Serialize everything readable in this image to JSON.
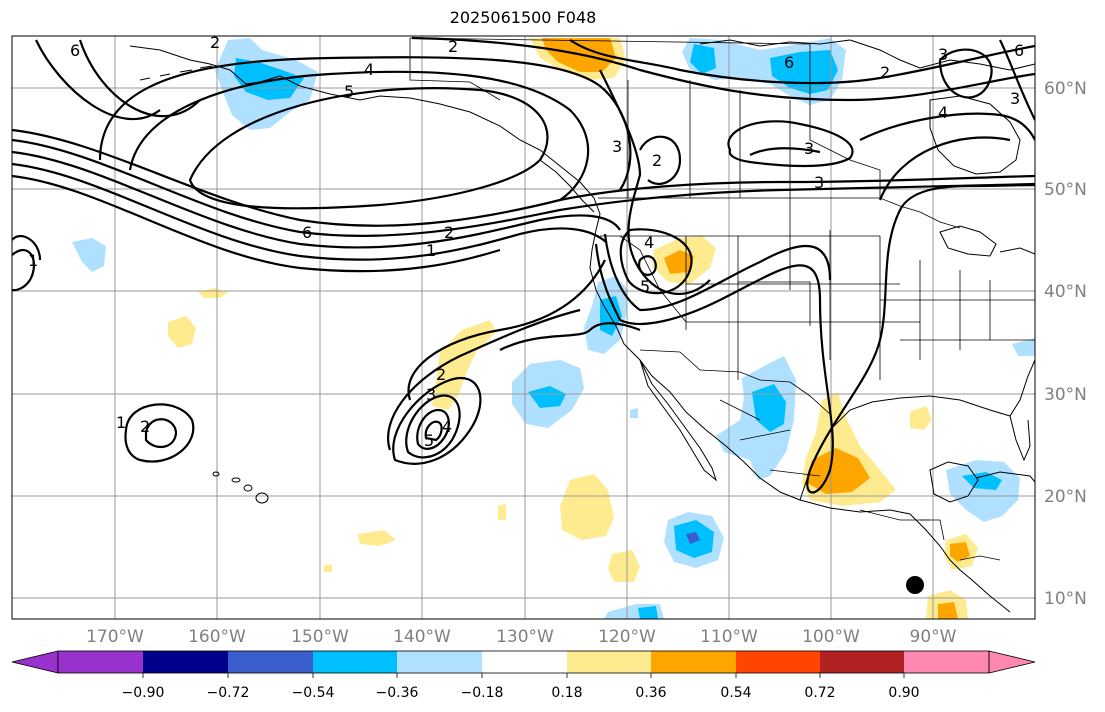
{
  "title": "2025061500 F048",
  "map": {
    "longitude_labels": [
      "170°W",
      "160°W",
      "150°W",
      "140°W",
      "130°W",
      "120°W",
      "110°W",
      "100°W",
      "90°W"
    ],
    "latitude_labels": [
      "60°N",
      "50°N",
      "40°N",
      "30°N",
      "20°N",
      "10°N"
    ],
    "contour_labels": [
      "6",
      "2",
      "4",
      "5",
      "2",
      "3",
      "6",
      "6",
      "2",
      "1",
      "1",
      "2",
      "4",
      "5",
      "2",
      "3",
      "4",
      "5",
      "3",
      "3",
      "2",
      "1",
      "3",
      "4",
      "6",
      "2",
      "3"
    ]
  },
  "colorbar": {
    "tick_labels": [
      "−0.90",
      "−0.72",
      "−0.54",
      "−0.36",
      "−0.18",
      "0.18",
      "0.36",
      "0.54",
      "0.72",
      "0.90"
    ],
    "colors": [
      "#9932cc",
      "#00008b",
      "#3a5fcd",
      "#00bfff",
      "#b0e0ff",
      "#ffffff",
      "#ffeb8f",
      "#ffa500",
      "#ff4500",
      "#b22222",
      "#ff88b0"
    ]
  },
  "colors": {
    "land_outline": "#000000",
    "grid": "#999999",
    "contour": "#000000",
    "axis_label": "#808080"
  },
  "marker": "filled-black-circle"
}
